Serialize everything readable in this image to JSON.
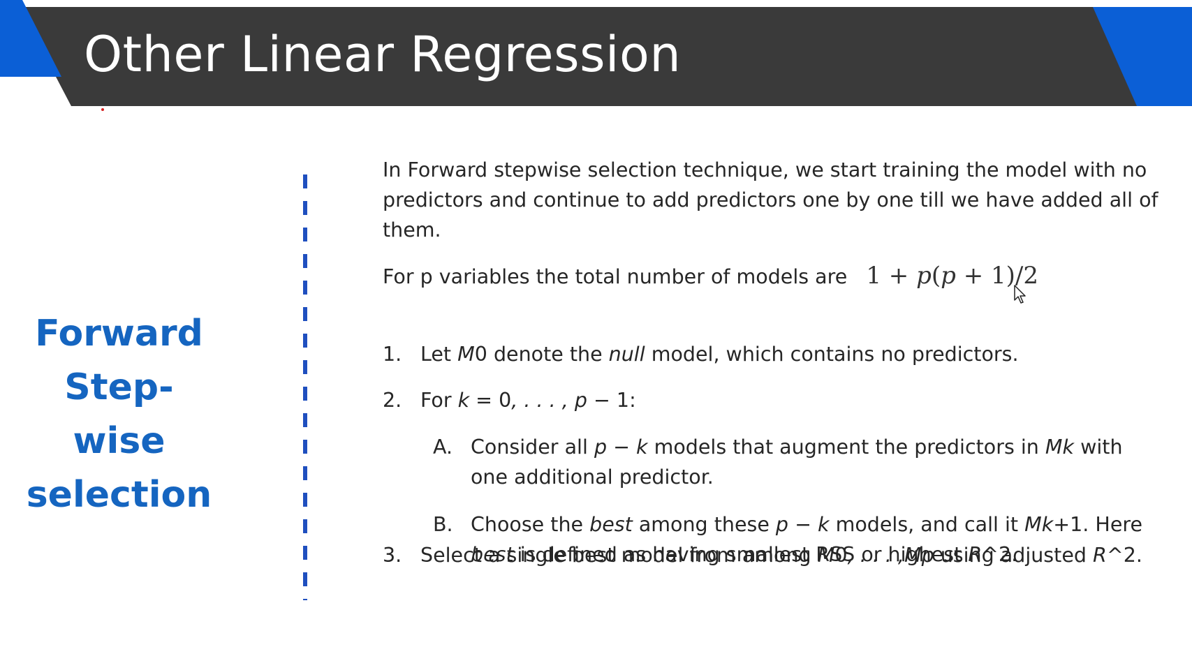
{
  "slide": {
    "title": "Other Linear Regression",
    "section_label_lines": [
      "Forward",
      "Step-wise",
      "selection"
    ],
    "intro": "In Forward stepwise selection technique, we start training the model with no predictors and continue to add predictors one by one till we have added all of them.",
    "formula_lead": "For p variables the total number of models are",
    "formula": {
      "one": "1",
      "plus1": "+",
      "p1": "p",
      "open1": "(",
      "p2": "p",
      "plus2": "+",
      "one2": "1)/2"
    },
    "steps": {
      "s1": {
        "num": "1.",
        "t1": "Let ",
        "i1": "M",
        "t2": "0 denote the ",
        "i2": "null",
        "t3": " model, which contains no predictors."
      },
      "s2": {
        "num": "2.",
        "t1": "For ",
        "i1": "k",
        "t2": " = 0",
        "i2": ", . . . , p",
        "t3": " − 1:"
      },
      "sA": {
        "num": "A.",
        "t1": "Consider all ",
        "i1": "p − k",
        "t2": " models that augment the predictors in ",
        "i2": "Mk",
        "t3": " with one additional predictor."
      },
      "sB": {
        "num": "B.",
        "t1": "Choose the ",
        "i1": "best",
        "t2": " among these ",
        "i2": "p − k",
        "t3": " models, and call it ",
        "i3": "Mk",
        "t4": "+1. Here ",
        "i4": "best",
        "t5": " is defined as having smallest RSS or highest ",
        "i5": "R",
        "t6": "^2."
      },
      "s3": {
        "num": "3.",
        "t1": "Select a single best model from among ",
        "i1": "M",
        "t2": "0",
        "i2": ", . . . ,Mp",
        "t3": " using adjusted ",
        "i3": "R",
        "t4": "^2."
      }
    }
  },
  "colors": {
    "header_bg": "#3a3a3a",
    "accent_blue": "#0b5fd6",
    "section_label": "#1565c0",
    "divider": "#1f4fbf",
    "body_text": "#262626"
  },
  "icons": [
    "mouse-pointer-icon"
  ]
}
